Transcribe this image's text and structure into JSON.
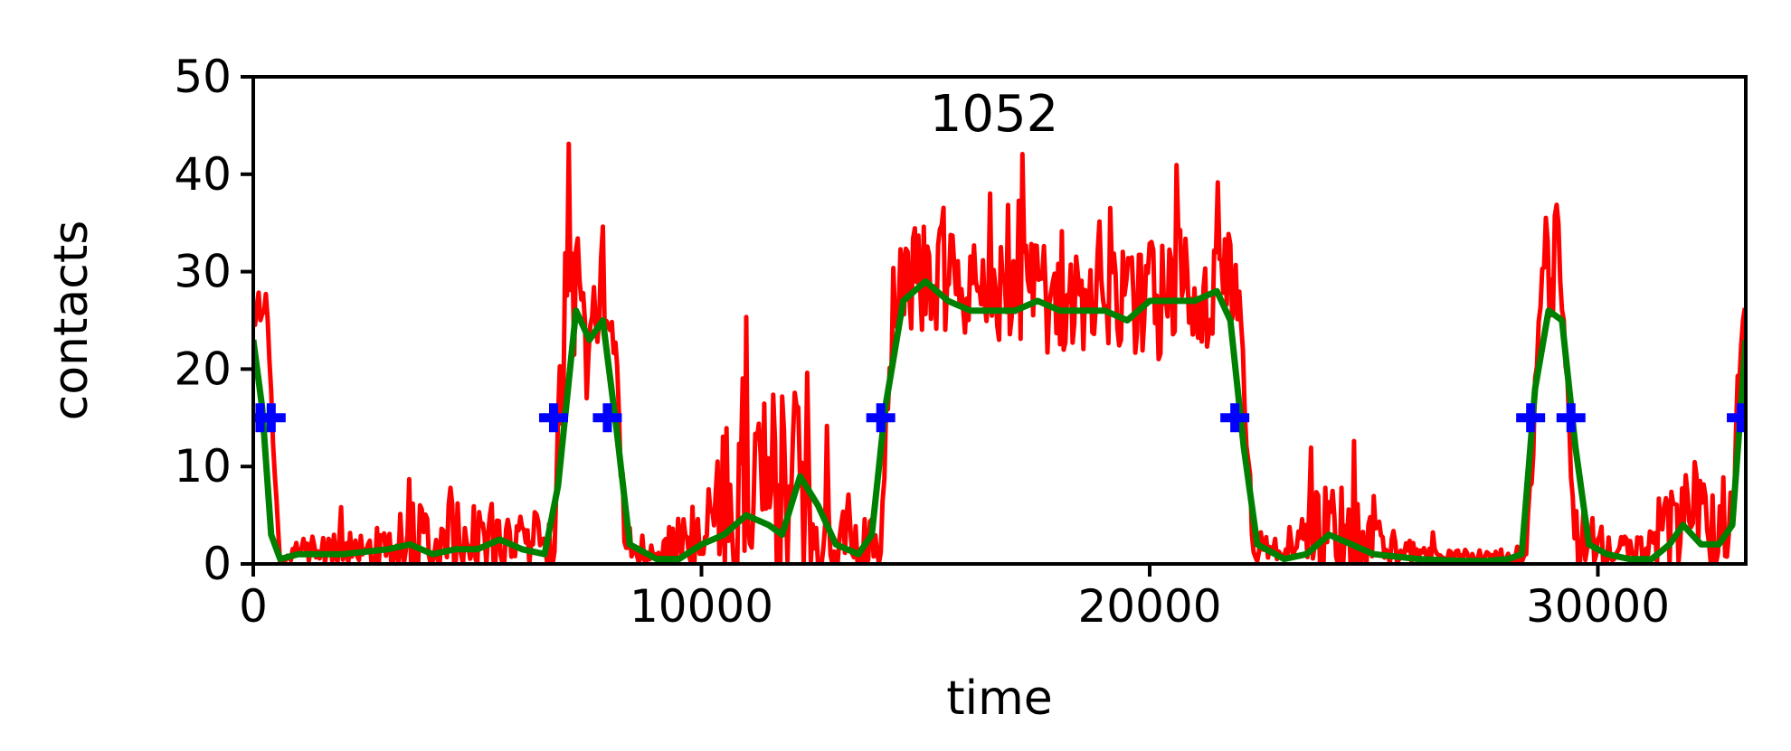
{
  "chart_data": {
    "type": "line",
    "title": "1052",
    "xlabel": "time",
    "ylabel": "contacts",
    "xlim": [
      0,
      33300
    ],
    "ylim": [
      0,
      50
    ],
    "xticks": [
      0,
      10000,
      20000,
      30000
    ],
    "yticks": [
      0,
      10,
      20,
      30,
      40,
      50
    ],
    "xtick_labels": [
      "0",
      "10000",
      "20000",
      "30000"
    ],
    "ytick_labels": [
      "0",
      "10",
      "20",
      "30",
      "40",
      "50"
    ],
    "grid": false,
    "colors": {
      "raw": "#ff0000",
      "smoothed": "#008000",
      "events": "#0000ff"
    },
    "series": [
      {
        "key": "raw",
        "style": "noisy",
        "x": [
          0,
          300,
          600,
          1000,
          2000,
          3000,
          4000,
          5000,
          6000,
          6700,
          7000,
          7400,
          7700,
          8000,
          8300,
          9000,
          10000,
          11000,
          11800,
          12500,
          13500,
          14000,
          14300,
          15000,
          16000,
          17000,
          18000,
          19000,
          20000,
          21000,
          21700,
          22000,
          22300,
          23000,
          24000,
          25000,
          26000,
          27000,
          28000,
          28400,
          28800,
          29200,
          29500,
          30000,
          31000,
          31800,
          32500,
          33000,
          33300
        ],
        "values": [
          25,
          25,
          0,
          1.5,
          1.5,
          2,
          2.5,
          3,
          2,
          3,
          30,
          24,
          28,
          30,
          2,
          1,
          3,
          7,
          9,
          5,
          3,
          2,
          29,
          30,
          28,
          28,
          27,
          27,
          27,
          28,
          29,
          26,
          1,
          2,
          4,
          2,
          1,
          0.5,
          0.5,
          1,
          31,
          32,
          2,
          2,
          1,
          5,
          5,
          4,
          32
        ],
        "amplitude": [
          3,
          3,
          0,
          1,
          2,
          3,
          4,
          4,
          3,
          4,
          6,
          8,
          6,
          6,
          2,
          1,
          4,
          10,
          12,
          8,
          3,
          2,
          5,
          6,
          5,
          5,
          6,
          5,
          6,
          7,
          6,
          4,
          1,
          2,
          5,
          3,
          1,
          1,
          1,
          1,
          6,
          6,
          2,
          2,
          2,
          6,
          6,
          4,
          5
        ]
      },
      {
        "key": "smoothed",
        "style": "smooth",
        "x": [
          0,
          200,
          400,
          600,
          1000,
          2000,
          3000,
          3500,
          4000,
          4500,
          5000,
          5500,
          6000,
          6500,
          6800,
          7200,
          7500,
          7800,
          8100,
          8400,
          9000,
          9500,
          10000,
          10500,
          11000,
          11500,
          11800,
          12200,
          12600,
          13000,
          13500,
          13800,
          14100,
          14500,
          15000,
          15500,
          16000,
          17000,
          17500,
          18000,
          19000,
          19500,
          20000,
          20500,
          21000,
          21500,
          21800,
          22100,
          22400,
          23000,
          23500,
          24000,
          24500,
          25000,
          26000,
          27000,
          27500,
          28000,
          28300,
          28600,
          28900,
          29200,
          29500,
          29800,
          30200,
          30700,
          31200,
          31600,
          31900,
          32300,
          32700,
          33000,
          33300
        ],
        "values": [
          23,
          16,
          3,
          0.5,
          1,
          1,
          1.5,
          2,
          1,
          1.5,
          1.5,
          2.5,
          1.5,
          1,
          8,
          26,
          23,
          25,
          14,
          2,
          0.5,
          0.5,
          2,
          3,
          5,
          4,
          3,
          9,
          6,
          2,
          1,
          3,
          16,
          27,
          29,
          27,
          26,
          26,
          27,
          26,
          26,
          25,
          27,
          27,
          27,
          28,
          25,
          12,
          2,
          0.5,
          1,
          3,
          2,
          1,
          0.5,
          0.3,
          0.3,
          0.5,
          1,
          18,
          26,
          25,
          12,
          2,
          1,
          0.5,
          0.5,
          2,
          4,
          2,
          2,
          4,
          23
        ]
      }
    ],
    "markers": {
      "key": "events",
      "symbol": "+",
      "x": [
        150,
        400,
        6700,
        7900,
        14000,
        21900,
        28500,
        29400,
        33200
      ],
      "y": [
        15,
        15,
        15,
        15,
        15,
        15,
        15,
        15,
        15
      ]
    }
  }
}
